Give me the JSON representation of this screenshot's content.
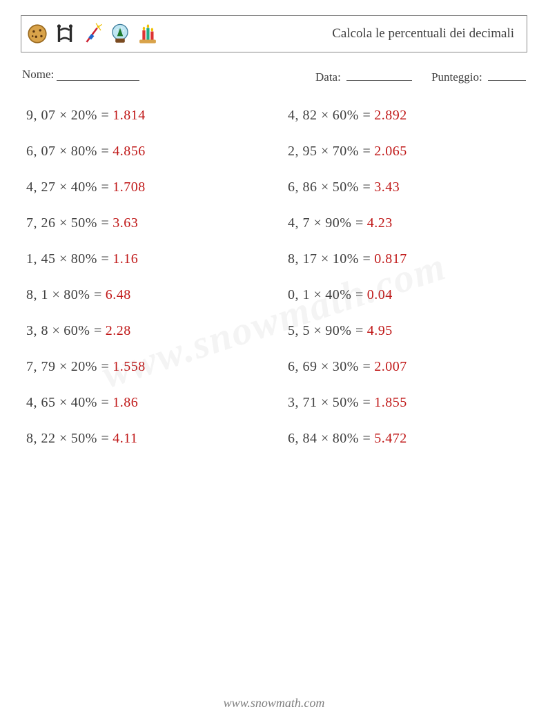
{
  "colors": {
    "text": "#404040",
    "answer": "#c01818",
    "border": "#888888",
    "watermark": "rgba(120,120,120,0.08)",
    "footer": "#808080",
    "background": "#ffffff"
  },
  "header": {
    "title": "Calcola le percentuali dei decimali",
    "icons": [
      "cookie",
      "gate",
      "firework",
      "snowglobe",
      "candles"
    ]
  },
  "info": {
    "name_label": "Nome:",
    "date_label": "Data:",
    "score_label": "Punteggio:"
  },
  "problems": {
    "left": [
      {
        "a": "9, 07",
        "b": "20%",
        "ans": "1.814"
      },
      {
        "a": "6, 07",
        "b": "80%",
        "ans": "4.856"
      },
      {
        "a": "4, 27",
        "b": "40%",
        "ans": "1.708"
      },
      {
        "a": "7, 26",
        "b": "50%",
        "ans": "3.63"
      },
      {
        "a": "1, 45",
        "b": "80%",
        "ans": "1.16"
      },
      {
        "a": "8, 1",
        "b": "80%",
        "ans": "6.48"
      },
      {
        "a": "3, 8",
        "b": "60%",
        "ans": "2.28"
      },
      {
        "a": "7, 79",
        "b": "20%",
        "ans": "1.558"
      },
      {
        "a": "4, 65",
        "b": "40%",
        "ans": "1.86"
      },
      {
        "a": "8, 22",
        "b": "50%",
        "ans": "4.11"
      }
    ],
    "right": [
      {
        "a": "4, 82",
        "b": "60%",
        "ans": "2.892"
      },
      {
        "a": "2, 95",
        "b": "70%",
        "ans": "2.065"
      },
      {
        "a": "6, 86",
        "b": "50%",
        "ans": "3.43"
      },
      {
        "a": "4, 7",
        "b": "90%",
        "ans": "4.23"
      },
      {
        "a": "8, 17",
        "b": "10%",
        "ans": "0.817"
      },
      {
        "a": "0, 1",
        "b": "40%",
        "ans": "0.04"
      },
      {
        "a": "5, 5",
        "b": "90%",
        "ans": "4.95"
      },
      {
        "a": "6, 69",
        "b": "30%",
        "ans": "2.007"
      },
      {
        "a": "3, 71",
        "b": "50%",
        "ans": "1.855"
      },
      {
        "a": "6, 84",
        "b": "80%",
        "ans": "5.472"
      }
    ]
  },
  "watermark": "www.snowmath.com",
  "footer": "www.snowmath.com"
}
